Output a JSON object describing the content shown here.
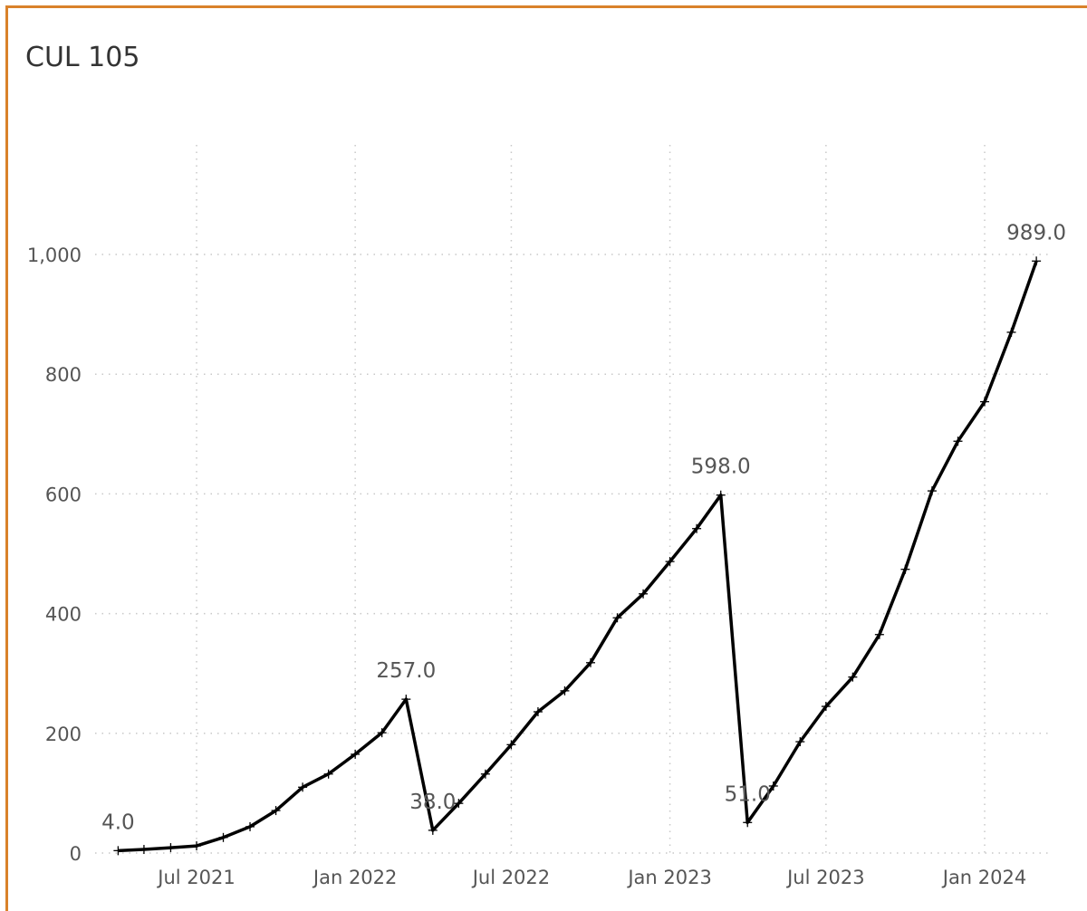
{
  "chart_data": {
    "type": "line",
    "title": "CUL 105",
    "xlabel": "",
    "ylabel": "",
    "ylim": [
      0,
      1000
    ],
    "y_ticks": [
      0,
      200,
      400,
      600,
      800,
      1000
    ],
    "y_tick_labels": [
      "0",
      "200",
      "400",
      "600",
      "800",
      "1,000"
    ],
    "x_ticks": [
      "2021-07-01",
      "2022-01-01",
      "2022-07-01",
      "2023-01-01",
      "2023-07-01",
      "2024-01-01"
    ],
    "x_tick_labels": [
      "Jul 2021",
      "Jan 2022",
      "Jul 2022",
      "Jan 2023",
      "Jul 2023",
      "Jan 2024"
    ],
    "grid": true,
    "line_color": "#000000",
    "frame_color": "#d9822b",
    "series": [
      {
        "x": [
          "2021-04-01",
          "2021-05-01",
          "2021-06-01",
          "2021-07-01",
          "2021-08-01",
          "2021-09-01",
          "2021-10-01",
          "2021-11-01",
          "2021-12-01",
          "2022-01-01",
          "2022-02-01",
          "2022-03-01",
          "2022-04-01",
          "2022-05-01",
          "2022-06-01",
          "2022-07-01",
          "2022-08-01",
          "2022-09-01",
          "2022-10-01",
          "2022-11-01",
          "2022-12-01",
          "2023-01-01",
          "2023-02-01",
          "2023-03-01",
          "2023-04-01",
          "2023-05-01",
          "2023-06-01",
          "2023-07-01",
          "2023-08-01",
          "2023-09-01",
          "2023-10-01",
          "2023-11-01",
          "2023-12-01",
          "2024-01-01",
          "2024-02-01",
          "2024-03-01"
        ],
        "values": [
          4,
          6,
          9,
          12,
          26,
          44,
          71,
          110,
          132,
          165,
          201,
          257,
          38,
          83,
          132,
          181,
          236,
          271,
          318,
          393,
          433,
          487,
          542,
          598,
          51,
          112,
          186,
          245,
          294,
          365,
          474,
          605,
          688,
          754,
          870,
          989
        ]
      }
    ],
    "data_labels": [
      {
        "index": 0,
        "text": "4.0"
      },
      {
        "index": 11,
        "text": "257.0"
      },
      {
        "index": 12,
        "text": "38.0"
      },
      {
        "index": 23,
        "text": "598.0"
      },
      {
        "index": 24,
        "text": "51.0"
      },
      {
        "index": 35,
        "text": "989.0"
      }
    ]
  }
}
